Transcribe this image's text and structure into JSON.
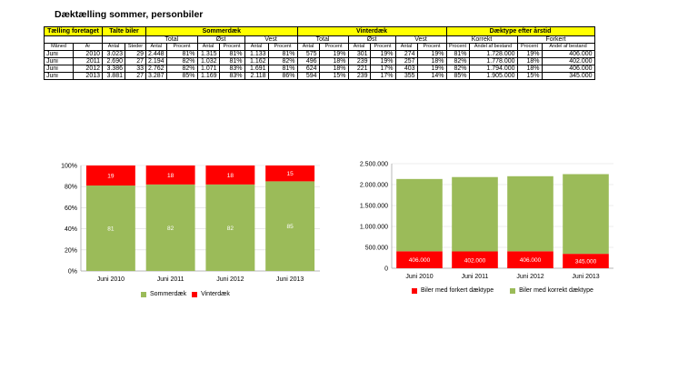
{
  "title": "Dæktælling sommer, personbiler",
  "table": {
    "h1": [
      "Tælling foretaget",
      "Talte biler",
      "Sommerdæk",
      "Vinterdæk",
      "Dæktype efter årstid"
    ],
    "h2": [
      "Total",
      "Øst",
      "Vest",
      "Total",
      "Øst",
      "Vest",
      "Korrekt",
      "Forkert"
    ],
    "h3": [
      "Måned",
      "År",
      "Antal",
      "Steder",
      "Antal",
      "Procent",
      "Antal",
      "Procent",
      "Antal",
      "Procent",
      "Antal",
      "Procent",
      "Antal",
      "Procent",
      "Antal",
      "Procent",
      "Procent",
      "Andel af bestand",
      "Procent",
      "Andel af bestand"
    ],
    "rows": [
      [
        "Juni",
        "2010",
        "3.023",
        "29",
        "2.448",
        "81%",
        "1.315",
        "81%",
        "1.133",
        "81%",
        "575",
        "19%",
        "301",
        "19%",
        "274",
        "19%",
        "81%",
        "1.728.000",
        "19%",
        "406.000"
      ],
      [
        "Juni",
        "2011",
        "2.690",
        "27",
        "2.194",
        "82%",
        "1.032",
        "81%",
        "1.162",
        "82%",
        "496",
        "18%",
        "239",
        "19%",
        "257",
        "18%",
        "82%",
        "1.778.000",
        "18%",
        "402.000"
      ],
      [
        "Juni",
        "2012",
        "3.386",
        "33",
        "2.762",
        "82%",
        "1.071",
        "83%",
        "1.691",
        "81%",
        "624",
        "18%",
        "221",
        "17%",
        "403",
        "19%",
        "82%",
        "1.794.000",
        "18%",
        "406.000"
      ],
      [
        "Juni",
        "2013",
        "3.881",
        "27",
        "3.287",
        "85%",
        "1.169",
        "83%",
        "2.118",
        "86%",
        "594",
        "15%",
        "239",
        "17%",
        "355",
        "14%",
        "85%",
        "1.905.000",
        "15%",
        "345.000"
      ]
    ]
  },
  "chart_data": [
    {
      "type": "bar",
      "stacked": true,
      "categories": [
        "Juni 2010",
        "Juni 2011",
        "Juni 2012",
        "Juni 2013"
      ],
      "series": [
        {
          "name": "Sommerdæk",
          "values": [
            81,
            82,
            82,
            85
          ],
          "color": "#9bbb59"
        },
        {
          "name": "Vinterdæk",
          "values": [
            19,
            18,
            18,
            15
          ],
          "color": "#ff0000"
        }
      ],
      "ylim": [
        0,
        100
      ],
      "yticks": [
        "0%",
        "20%",
        "40%",
        "60%",
        "80%",
        "100%"
      ],
      "grid": true,
      "legend": "bottom"
    },
    {
      "type": "bar",
      "stacked": true,
      "categories": [
        "Juni 2010",
        "Juni 2011",
        "Juni 2012",
        "Juni 2013"
      ],
      "series": [
        {
          "name": "Biler med forkert dæktype",
          "values": [
            406000,
            402000,
            406000,
            345000
          ],
          "labels": [
            "406.000",
            "402.000",
            "406.000",
            "345.000"
          ],
          "color": "#ff0000"
        },
        {
          "name": "Biler med korrekt dæktype",
          "values": [
            1728000,
            1778000,
            1794000,
            1905000
          ],
          "color": "#9bbb59"
        }
      ],
      "ylim": [
        0,
        2500000
      ],
      "yticks": [
        "0",
        "500.000",
        "1.000.000",
        "1.500.000",
        "2.000.000",
        "2.500.000"
      ],
      "grid": true,
      "legend": "bottom"
    }
  ]
}
